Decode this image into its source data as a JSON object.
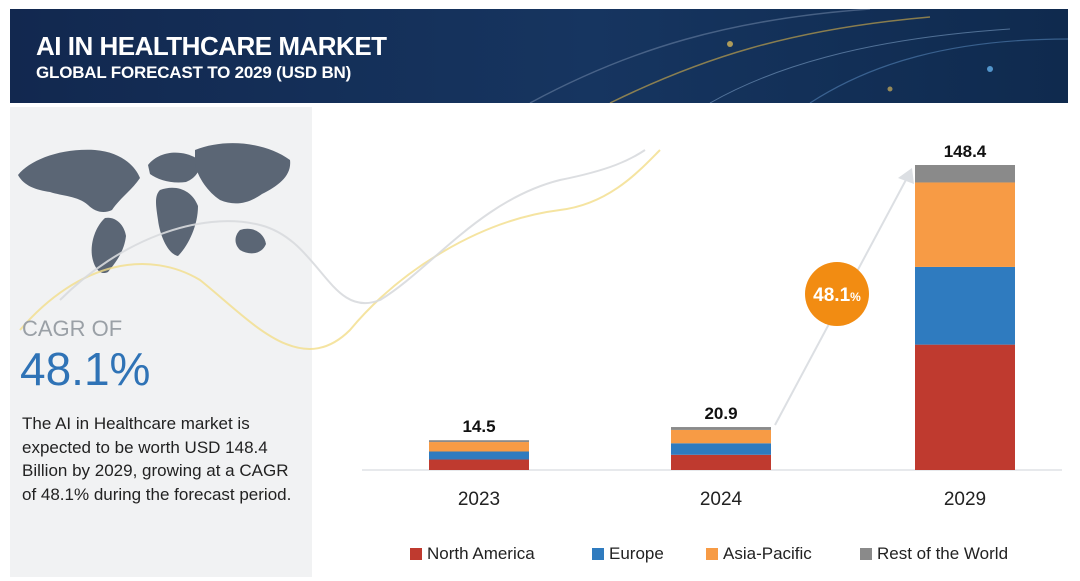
{
  "header": {
    "title": "AI IN HEALTHCARE MARKET",
    "subtitle": "GLOBAL FORECAST TO 2029 (USD BN)"
  },
  "left_panel": {
    "cagr_label": "CAGR OF",
    "cagr_value": "48.1%",
    "description": "The AI in Healthcare market is expected to be worth USD 148.4 Billion by 2029, growing at a CAGR of 48.1% during the forecast period."
  },
  "cagr_badge": {
    "value": "48.1",
    "unit": "%",
    "color": "#f28c12"
  },
  "colors": {
    "header_bg": "#12284f",
    "cagr_blue": "#2f73b6",
    "panel_bg": "#f1f2f3"
  },
  "chart_data": {
    "type": "bar",
    "stacked": true,
    "categories": [
      "2023",
      "2024",
      "2029"
    ],
    "totals": [
      14.5,
      20.9,
      148.4
    ],
    "series": [
      {
        "name": "North America",
        "color": "#bf3a2f",
        "values": [
          5.1,
          7.4,
          61.0
        ]
      },
      {
        "name": "Europe",
        "color": "#2f7bbf",
        "values": [
          3.9,
          5.6,
          37.8
        ]
      },
      {
        "name": "Asia-Pacific",
        "color": "#f79b45",
        "values": [
          4.6,
          6.5,
          41.1
        ]
      },
      {
        "name": "Rest of the World",
        "color": "#8a8a8a",
        "values": [
          0.9,
          1.4,
          8.5
        ]
      }
    ],
    "ylim": [
      0,
      148.4
    ],
    "legend_position": "bottom"
  }
}
